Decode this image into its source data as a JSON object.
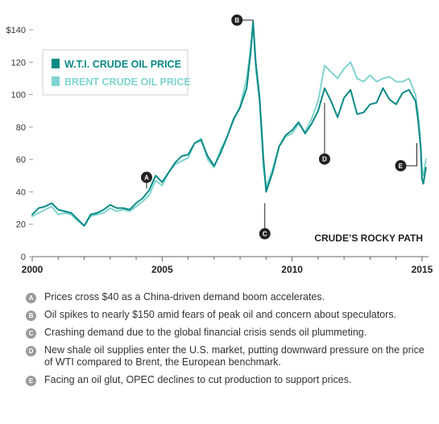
{
  "chart_data": {
    "type": "line",
    "title": "CRUDE’S ROCKY PATH",
    "xlabel": "",
    "ylabel": "",
    "xlim": [
      2000.0,
      2015.25
    ],
    "ylim": [
      0,
      145
    ],
    "y_ticks": [
      0,
      20,
      40,
      60,
      80,
      100,
      120,
      140
    ],
    "y_tick_labels": [
      "0",
      "20",
      "40",
      "60",
      "80",
      "100",
      "120",
      "$140"
    ],
    "x_ticks": [
      2000,
      2005,
      2010,
      2015
    ],
    "x_tick_labels": [
      "2000",
      "2005",
      "2010",
      "2015"
    ],
    "legend_position": "top-left",
    "grid": false,
    "series": [
      {
        "name": "W.T.I. CRUDE OIL PRICE",
        "color": "#0b8a85",
        "x": [
          2000.0,
          2000.25,
          2000.5,
          2000.75,
          2001.0,
          2001.25,
          2001.5,
          2001.75,
          2002.0,
          2002.25,
          2002.5,
          2002.75,
          2003.0,
          2003.25,
          2003.5,
          2003.75,
          2004.0,
          2004.25,
          2004.5,
          2004.75,
          2005.0,
          2005.25,
          2005.5,
          2005.75,
          2006.0,
          2006.25,
          2006.5,
          2006.75,
          2007.0,
          2007.25,
          2007.5,
          2007.75,
          2008.0,
          2008.25,
          2008.4,
          2008.5,
          2008.6,
          2008.75,
          2008.9,
          2009.0,
          2009.25,
          2009.5,
          2009.75,
          2010.0,
          2010.25,
          2010.5,
          2010.75,
          2011.0,
          2011.25,
          2011.5,
          2011.75,
          2012.0,
          2012.25,
          2012.5,
          2012.75,
          2013.0,
          2013.25,
          2013.5,
          2013.75,
          2014.0,
          2014.25,
          2014.5,
          2014.75,
          2014.85,
          2014.95,
          2015.0,
          2015.05,
          2015.1,
          2015.15
        ],
        "values": [
          26,
          30,
          31,
          33,
          29,
          28,
          27,
          23,
          19,
          26,
          27,
          29,
          32,
          30,
          30,
          29,
          33,
          36,
          41,
          50,
          46,
          52,
          58,
          62,
          63,
          70,
          72,
          62,
          56,
          64,
          74,
          85,
          92,
          104,
          125,
          145,
          120,
          98,
          60,
          40,
          52,
          68,
          75,
          78,
          83,
          76,
          82,
          90,
          104,
          96,
          86,
          98,
          103,
          88,
          89,
          94,
          95,
          104,
          97,
          94,
          101,
          103,
          96,
          84,
          67,
          48,
          45,
          50,
          55
        ]
      },
      {
        "name": "BRENT CRUDE OIL PRICE",
        "color": "#7fd4cf",
        "x": [
          2000.0,
          2000.25,
          2000.5,
          2000.75,
          2001.0,
          2001.25,
          2001.5,
          2001.75,
          2002.0,
          2002.25,
          2002.5,
          2002.75,
          2003.0,
          2003.25,
          2003.5,
          2003.75,
          2004.0,
          2004.25,
          2004.5,
          2004.75,
          2005.0,
          2005.25,
          2005.5,
          2005.75,
          2006.0,
          2006.25,
          2006.5,
          2006.75,
          2007.0,
          2007.25,
          2007.5,
          2007.75,
          2008.0,
          2008.25,
          2008.4,
          2008.5,
          2008.6,
          2008.75,
          2008.9,
          2009.0,
          2009.25,
          2009.5,
          2009.75,
          2010.0,
          2010.25,
          2010.5,
          2010.75,
          2011.0,
          2011.25,
          2011.5,
          2011.75,
          2012.0,
          2012.25,
          2012.5,
          2012.75,
          2013.0,
          2013.25,
          2013.5,
          2013.75,
          2014.0,
          2014.25,
          2014.5,
          2014.75,
          2014.85,
          2014.95,
          2015.0,
          2015.05,
          2015.1,
          2015.15
        ],
        "values": [
          25,
          27,
          29,
          31,
          26,
          27,
          26,
          22,
          19,
          25,
          26,
          27,
          30,
          28,
          29,
          28,
          31,
          34,
          38,
          47,
          44,
          52,
          57,
          59,
          61,
          70,
          73,
          60,
          55,
          66,
          74,
          84,
          93,
          110,
          128,
          143,
          116,
          95,
          55,
          43,
          54,
          68,
          74,
          76,
          82,
          77,
          85,
          96,
          118,
          114,
          110,
          116,
          120,
          110,
          108,
          112,
          108,
          110,
          111,
          108,
          108,
          110,
          100,
          88,
          70,
          53,
          50,
          56,
          60
        ]
      }
    ],
    "markers": [
      {
        "letter": "A",
        "x": 2004.4,
        "y": 42
      },
      {
        "letter": "B",
        "x": 2008.5,
        "y": 145
      },
      {
        "letter": "C",
        "x": 2008.95,
        "y": 33
      },
      {
        "letter": "D",
        "x": 2011.25,
        "y": 95
      },
      {
        "letter": "E",
        "x": 2014.8,
        "y": 70
      }
    ]
  },
  "annotations": [
    {
      "letter": "A",
      "text": "Prices cross $40 as a China-driven demand boom accelerates."
    },
    {
      "letter": "B",
      "text": "Oil spikes to nearly $150 amid fears of peak oil and concern about speculators."
    },
    {
      "letter": "C",
      "text": "Crashing demand due to the global financial crisis sends oil plummeting."
    },
    {
      "letter": "D",
      "text": "New shale oil supplies enter the U.S. market, putting downward pressure on the price of WTI compared to Brent, the European benchmark."
    },
    {
      "letter": "E",
      "text": "Facing an oil glut, OPEC declines to cut production to support prices."
    }
  ]
}
